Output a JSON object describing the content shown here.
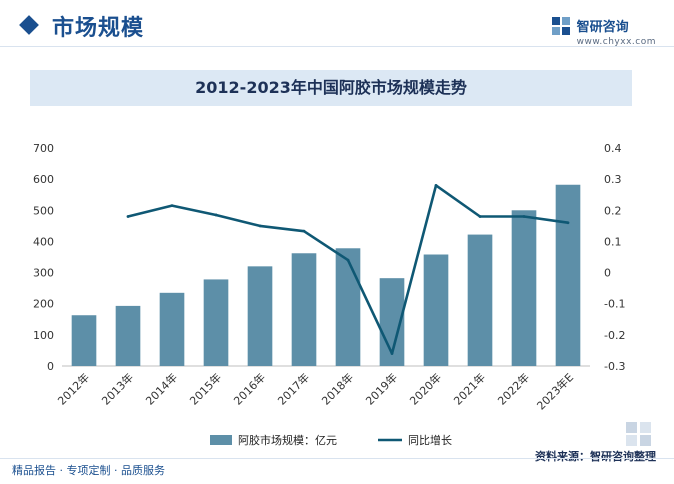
{
  "header": {
    "title": "市场规模",
    "brand_name": "智研咨询",
    "brand_url": "www.chyxx.com"
  },
  "footer": {
    "left_text": "精品报告 · 专项定制 · 品质服务",
    "source_text": "资料来源：智研咨询整理"
  },
  "colors": {
    "bar": "#5d8fa8",
    "line": "#0f5874",
    "accent": "#1a4f8f"
  },
  "chart_data": {
    "type": "bar",
    "title": "2012-2023年中国阿胶市场规模走势",
    "categories": [
      "2012年",
      "2013年",
      "2014年",
      "2015年",
      "2016年",
      "2017年",
      "2018年",
      "2019年",
      "2020年",
      "2021年",
      "2022年",
      "2023年E"
    ],
    "series": [
      {
        "name": "阿胶市场规模：亿元",
        "type": "bar",
        "axis": "left",
        "values": [
          163,
          193,
          235,
          278,
          320,
          362,
          378,
          282,
          358,
          422,
          500,
          582
        ]
      },
      {
        "name": "同比增长",
        "type": "line",
        "axis": "right",
        "values": [
          null,
          0.18,
          0.215,
          0.185,
          0.15,
          0.133,
          0.04,
          -0.26,
          0.28,
          0.18,
          0.18,
          0.16
        ]
      }
    ],
    "y_left": {
      "min": 0,
      "max": 700,
      "ticks": [
        "0",
        "100",
        "200",
        "300",
        "400",
        "500",
        "600",
        "700"
      ]
    },
    "y_right": {
      "min": -0.3,
      "max": 0.4,
      "ticks": [
        "-0.3",
        "-0.2",
        "-0.1",
        "0",
        "0.1",
        "0.2",
        "0.3",
        "0.4"
      ]
    },
    "legend_position": "bottom-center",
    "grid": false
  }
}
